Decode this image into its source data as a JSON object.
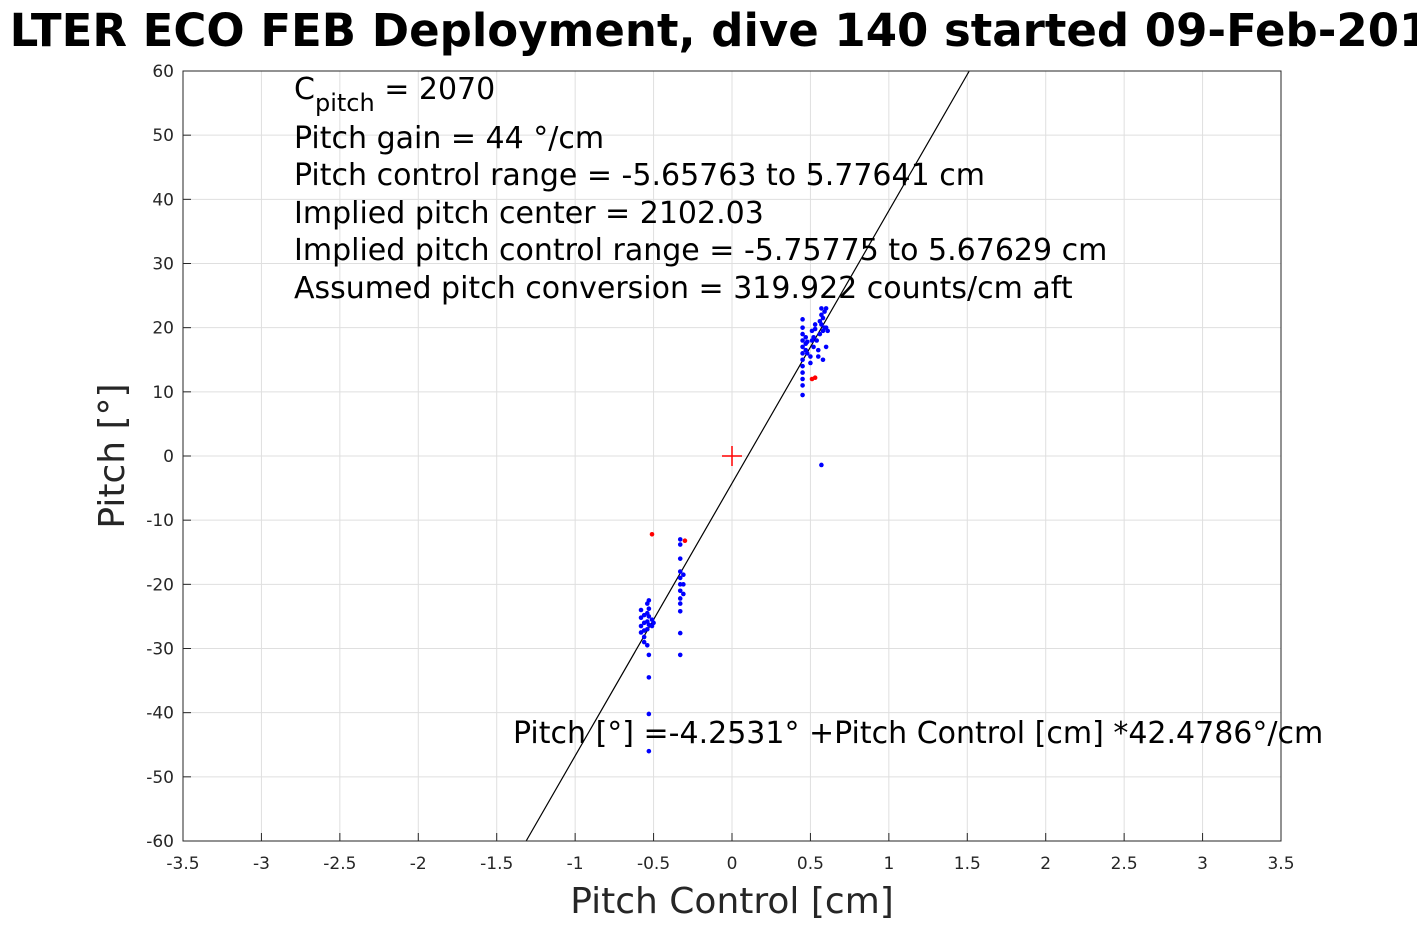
{
  "chart_data": {
    "type": "scatter",
    "title": "LTER ECO FEB Deployment, dive 140 started 09-Feb-201",
    "xlabel": "Pitch Control [cm]",
    "ylabel": "Pitch [°]",
    "xlim": [
      -3.5,
      3.5
    ],
    "ylim": [
      -60,
      60
    ],
    "xticks": [
      -3.5,
      -3,
      -2.5,
      -2,
      -1.5,
      -1,
      -0.5,
      0,
      0.5,
      1,
      1.5,
      2,
      2.5,
      3,
      3.5
    ],
    "xtick_labels": [
      "-3.5",
      "-3",
      "-2.5",
      "-2",
      "-1.5",
      "-1",
      "-0.5",
      "0",
      "0.5",
      "1",
      "1.5",
      "2",
      "2.5",
      "3",
      "3.5"
    ],
    "yticks": [
      -60,
      -50,
      -40,
      -30,
      -20,
      -10,
      0,
      10,
      20,
      30,
      40,
      50,
      60
    ],
    "ytick_labels": [
      "-60",
      "-50",
      "-40",
      "-30",
      "-20",
      "-10",
      "0",
      "10",
      "20",
      "30",
      "40",
      "50",
      "60"
    ],
    "grid": true,
    "annotations": {
      "cpitch_base": "C",
      "cpitch_sub": "pitch",
      "cpitch_value": " = 2070",
      "pitch_gain": "Pitch gain = 44 °/cm",
      "control_range": "Pitch control range = -5.65763 to 5.77641 cm",
      "implied_center": "Implied pitch center = 2102.03",
      "implied_range": "Implied pitch control range = -5.75775 to 5.67629 cm",
      "conversion": "Assumed pitch conversion = 319.922 counts/cm aft",
      "fit_equation": "Pitch [°] =-4.2531° +Pitch Control [cm] *42.4786°/cm"
    },
    "fit_line": {
      "intercept": -4.2531,
      "slope": 42.4786,
      "color": "#000000"
    },
    "center_marker": {
      "x": 0,
      "y": 0,
      "color": "#ff0000"
    },
    "series": [
      {
        "color": "#0000ff",
        "points": [
          [
            -0.58,
            -24.0
          ],
          [
            -0.58,
            -25.2
          ],
          [
            -0.58,
            -26.5
          ],
          [
            -0.58,
            -27.5
          ],
          [
            -0.56,
            -24.8
          ],
          [
            -0.56,
            -26.0
          ],
          [
            -0.56,
            -27.2
          ],
          [
            -0.56,
            -28.2
          ],
          [
            -0.56,
            -29.0
          ],
          [
            -0.54,
            -23.0
          ],
          [
            -0.54,
            -24.5
          ],
          [
            -0.54,
            -25.8
          ],
          [
            -0.54,
            -27.0
          ],
          [
            -0.54,
            -29.5
          ],
          [
            -0.53,
            -22.5
          ],
          [
            -0.53,
            -23.8
          ],
          [
            -0.53,
            -25.0
          ],
          [
            -0.53,
            -26.3
          ],
          [
            -0.53,
            -31.0
          ],
          [
            -0.53,
            -34.5
          ],
          [
            -0.53,
            -40.2
          ],
          [
            -0.53,
            -46.0
          ],
          [
            -0.51,
            -25.5
          ],
          [
            -0.51,
            -26.5
          ],
          [
            -0.5,
            -26.0
          ],
          [
            -0.33,
            -13.0
          ],
          [
            -0.33,
            -13.8
          ],
          [
            -0.33,
            -16.0
          ],
          [
            -0.33,
            -18.0
          ],
          [
            -0.33,
            -19.0
          ],
          [
            -0.33,
            -20.0
          ],
          [
            -0.33,
            -21.0
          ],
          [
            -0.33,
            -22.2
          ],
          [
            -0.33,
            -23.0
          ],
          [
            -0.33,
            -24.2
          ],
          [
            -0.33,
            -27.6
          ],
          [
            -0.33,
            -31.0
          ],
          [
            -0.31,
            -18.5
          ],
          [
            -0.31,
            -20.0
          ],
          [
            -0.31,
            -21.5
          ],
          [
            0.45,
            21.3
          ],
          [
            0.45,
            20.0
          ],
          [
            0.45,
            19.0
          ],
          [
            0.45,
            18.0
          ],
          [
            0.45,
            17.0
          ],
          [
            0.45,
            16.0
          ],
          [
            0.45,
            15.0
          ],
          [
            0.45,
            14.0
          ],
          [
            0.45,
            13.0
          ],
          [
            0.45,
            12.0
          ],
          [
            0.45,
            11.0
          ],
          [
            0.45,
            9.5
          ],
          [
            0.47,
            18.5
          ],
          [
            0.47,
            17.5
          ],
          [
            0.47,
            16.5
          ],
          [
            0.48,
            17.8
          ],
          [
            0.48,
            16.0
          ],
          [
            0.5,
            15.5
          ],
          [
            0.5,
            14.5
          ],
          [
            0.51,
            18.0
          ],
          [
            0.51,
            19.5
          ],
          [
            0.52,
            17.0
          ],
          [
            0.52,
            18.5
          ],
          [
            0.53,
            19.8
          ],
          [
            0.53,
            20.5
          ],
          [
            0.54,
            18.0
          ],
          [
            0.55,
            16.5
          ],
          [
            0.55,
            15.5
          ],
          [
            0.56,
            21.0
          ],
          [
            0.56,
            19.0
          ],
          [
            0.57,
            20.5
          ],
          [
            0.57,
            22.0
          ],
          [
            0.57,
            23.0
          ],
          [
            0.58,
            21.5
          ],
          [
            0.58,
            19.5
          ],
          [
            0.58,
            15.0
          ],
          [
            0.59,
            20.0
          ],
          [
            0.59,
            22.5
          ],
          [
            0.6,
            17.0
          ],
          [
            0.6,
            20.0
          ],
          [
            0.61,
            19.5
          ],
          [
            0.6,
            23.0
          ],
          [
            0.57,
            -1.4
          ]
        ]
      },
      {
        "color": "#ff0000",
        "points": [
          [
            -0.51,
            -12.2
          ],
          [
            -0.3,
            -13.2
          ],
          [
            0.51,
            12.0
          ],
          [
            0.53,
            12.2
          ]
        ]
      }
    ]
  }
}
